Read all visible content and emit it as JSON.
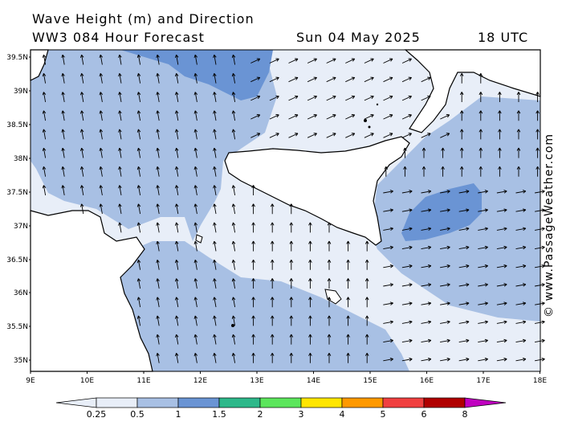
{
  "header": {
    "title_line1": "Wave Height (m) and Direction",
    "title_line2": "WW3 084 Hour Forecast",
    "date": "Sun 04 May 2025",
    "time": "18 UTC"
  },
  "map": {
    "lat_labels": [
      "39.5N",
      "39N",
      "38.5N",
      "38N",
      "37.5N",
      "37N",
      "36.5N",
      "36N",
      "35.5N",
      "35N"
    ],
    "lon_labels": [
      "9E",
      "10E",
      "11E",
      "12E",
      "13E",
      "14E",
      "15E",
      "16E",
      "17E",
      "18E"
    ],
    "colors": {
      "land": "#ffffff",
      "band_0_25": "#e8eef8",
      "band_0_5": "#a8c0e4",
      "band_1": "#6a94d4",
      "coast": "#000000"
    }
  },
  "legend": {
    "labels": [
      "0.25",
      "0.5",
      "1",
      "1.5",
      "2",
      "3",
      "4",
      "5",
      "6",
      "8"
    ],
    "colors": [
      "#e8eef8",
      "#a8c0e4",
      "#6a94d4",
      "#2db88a",
      "#5ce65c",
      "#ffe600",
      "#ff9900",
      "#f04040",
      "#b00000",
      "#c000c0"
    ]
  },
  "credit": "© www.PassageWeather.com"
}
